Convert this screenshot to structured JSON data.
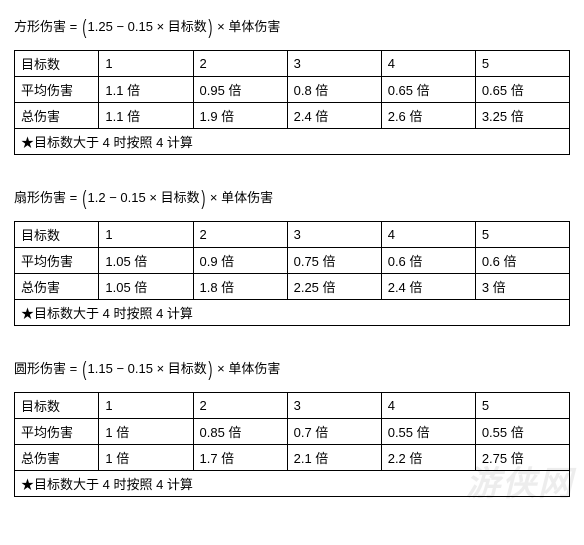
{
  "sections": [
    {
      "formula": {
        "lhs": "方形伤害",
        "a": "1.25",
        "b": "0.15",
        "var": "目标数",
        "rhs": "单体伤害"
      },
      "headers": [
        "目标数",
        "1",
        "2",
        "3",
        "4",
        "5"
      ],
      "rows": [
        {
          "label": "平均伤害",
          "cells": [
            "1.1 倍",
            "0.95 倍",
            "0.8 倍",
            "0.65 倍",
            "0.65 倍"
          ]
        },
        {
          "label": "总伤害",
          "cells": [
            "1.1 倍",
            "1.9 倍",
            "2.4 倍",
            "2.6 倍",
            "3.25 倍"
          ]
        }
      ],
      "note": "★目标数大于 4 时按照 4 计算"
    },
    {
      "formula": {
        "lhs": "扇形伤害",
        "a": "1.2",
        "b": "0.15",
        "var": "目标数",
        "rhs": "单体伤害"
      },
      "headers": [
        "目标数",
        "1",
        "2",
        "3",
        "4",
        "5"
      ],
      "rows": [
        {
          "label": "平均伤害",
          "cells": [
            "1.05 倍",
            "0.9 倍",
            "0.75 倍",
            "0.6 倍",
            "0.6 倍"
          ]
        },
        {
          "label": "总伤害",
          "cells": [
            "1.05 倍",
            "1.8 倍",
            "2.25 倍",
            "2.4 倍",
            "3 倍"
          ]
        }
      ],
      "note": "★目标数大于 4 时按照 4 计算"
    },
    {
      "formula": {
        "lhs": "圆形伤害",
        "a": "1.15",
        "b": "0.15",
        "var": "目标数",
        "rhs": "单体伤害"
      },
      "headers": [
        "目标数",
        "1",
        "2",
        "3",
        "4",
        "5"
      ],
      "rows": [
        {
          "label": "平均伤害",
          "cells": [
            "1 倍",
            "0.85 倍",
            "0.7 倍",
            "0.55 倍",
            "0.55 倍"
          ]
        },
        {
          "label": "总伤害",
          "cells": [
            "1 倍",
            "1.7 倍",
            "2.1 倍",
            "2.2 倍",
            "2.75 倍"
          ]
        }
      ],
      "note": "★目标数大于 4 时按照 4 计算"
    }
  ],
  "watermark": "游侠网",
  "style": {
    "background_color": "#ffffff",
    "text_color": "#000000",
    "border_color": "#000000",
    "font_size_pt": 10,
    "formula_paren_scale": 1.5,
    "col_widths_pct": [
      15,
      17,
      17,
      17,
      17,
      17
    ]
  }
}
